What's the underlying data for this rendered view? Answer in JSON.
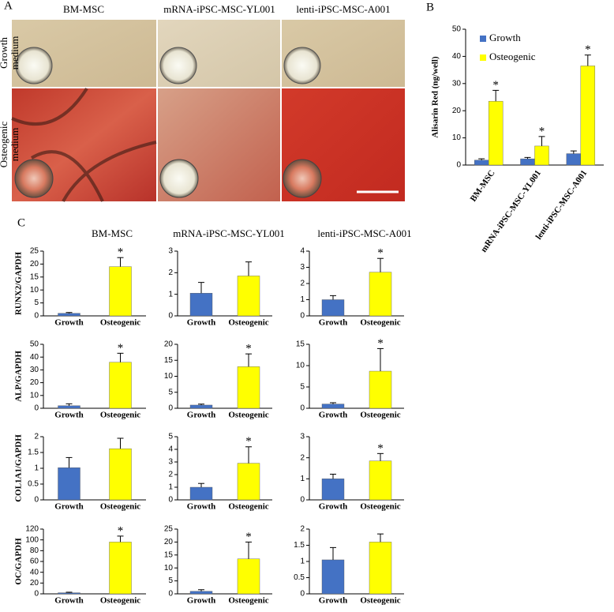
{
  "panel_a": {
    "label": "A",
    "column_titles": [
      "BM-MSC",
      "mRNA-iPSC-MSC-YL001",
      "lenti-iPSC-MSC-A001"
    ],
    "row_labels": [
      [
        "Growth",
        "medium"
      ],
      [
        "Osteogenic",
        "medium"
      ]
    ]
  },
  "panel_c": {
    "label": "C",
    "column_titles": [
      "BM-MSC",
      "mRNA-iPSC-MSC-YL001",
      "lenti-iPSC-MSC-A001"
    ]
  },
  "chart_data": [
    {
      "type": "bar",
      "label": "B",
      "ylabel": "Alisarin Red (ng/well)",
      "categories": [
        "BM-MSC",
        "mRNA-iPSC-MSC-YL001",
        "lenti-iPSC-MSC-A001"
      ],
      "ylim": [
        0,
        50
      ],
      "yticks": [
        0,
        10,
        20,
        30,
        40,
        50
      ],
      "legend": "top-left",
      "series": [
        {
          "name": "Growth",
          "color": "#4472c4",
          "values": [
            1.8,
            2.3,
            4.2
          ],
          "errors": [
            0.5,
            0.5,
            1
          ],
          "annotations": [
            null,
            null,
            null
          ]
        },
        {
          "name": "Osteogenic",
          "color": "#ffff00",
          "values": [
            23.5,
            7,
            36.5
          ],
          "errors": [
            4,
            3.5,
            4
          ],
          "annotations": [
            "*",
            "*",
            "*"
          ]
        }
      ]
    },
    {
      "type": "bar",
      "ylabel": "RUNX2/GAPDH",
      "categories": [
        "Growth",
        "Osteogenic"
      ],
      "colors": [
        "#4472c4",
        "#ffff00"
      ],
      "values": [
        1,
        19
      ],
      "errors": [
        0.3,
        3.5
      ],
      "annotations": [
        null,
        "*"
      ],
      "ylim": [
        0,
        25
      ],
      "yticks": [
        0,
        5,
        10,
        15,
        20,
        25
      ]
    },
    {
      "type": "bar",
      "categories": [
        "Growth",
        "Osteogenic"
      ],
      "colors": [
        "#4472c4",
        "#ffff00"
      ],
      "values": [
        1.05,
        1.85
      ],
      "errors": [
        0.5,
        0.65
      ],
      "ylim": [
        0,
        3
      ],
      "yticks": [
        0,
        1,
        2,
        3
      ]
    },
    {
      "type": "bar",
      "categories": [
        "Growth",
        "Osteogenic"
      ],
      "colors": [
        "#4472c4",
        "#ffff00"
      ],
      "values": [
        1,
        2.7
      ],
      "errors": [
        0.25,
        0.85
      ],
      "annotations": [
        null,
        "*"
      ],
      "ylim": [
        0,
        4
      ],
      "yticks": [
        0,
        1,
        2,
        3,
        4
      ]
    },
    {
      "type": "bar",
      "ylabel": "ALP/GAPDH",
      "categories": [
        "Growth",
        "Osteogenic"
      ],
      "colors": [
        "#4472c4",
        "#ffff00"
      ],
      "values": [
        2,
        36
      ],
      "errors": [
        1.5,
        7
      ],
      "annotations": [
        null,
        "*"
      ],
      "ylim": [
        0,
        50
      ],
      "yticks": [
        0,
        10,
        20,
        30,
        40,
        50
      ]
    },
    {
      "type": "bar",
      "categories": [
        "Growth",
        "Osteogenic"
      ],
      "colors": [
        "#4472c4",
        "#ffff00"
      ],
      "values": [
        1,
        13
      ],
      "errors": [
        0.3,
        4
      ],
      "annotations": [
        null,
        "*"
      ],
      "ylim": [
        0,
        20
      ],
      "yticks": [
        0,
        5,
        10,
        15,
        20
      ]
    },
    {
      "type": "bar",
      "categories": [
        "Growth",
        "Osteogenic"
      ],
      "colors": [
        "#4472c4",
        "#ffff00"
      ],
      "values": [
        1,
        8.7
      ],
      "errors": [
        0.3,
        5.3
      ],
      "annotations": [
        null,
        "*"
      ],
      "ylim": [
        0,
        15
      ],
      "yticks": [
        0,
        5,
        10,
        15
      ]
    },
    {
      "type": "bar",
      "ylabel": "COL1A1/GAPDH",
      "categories": [
        "Growth",
        "Osteogenic"
      ],
      "colors": [
        "#4472c4",
        "#ffff00"
      ],
      "values": [
        1.02,
        1.62
      ],
      "errors": [
        0.32,
        0.33
      ],
      "ylim": [
        0,
        2
      ],
      "yticks": [
        0,
        0.5,
        1,
        1.5,
        2
      ]
    },
    {
      "type": "bar",
      "categories": [
        "Growth",
        "Osteogenic"
      ],
      "colors": [
        "#4472c4",
        "#ffff00"
      ],
      "values": [
        1,
        2.9
      ],
      "errors": [
        0.3,
        1.3
      ],
      "annotations": [
        null,
        "*"
      ],
      "ylim": [
        0,
        5
      ],
      "yticks": [
        0,
        1,
        2,
        3,
        4,
        5
      ]
    },
    {
      "type": "bar",
      "categories": [
        "Growth",
        "Osteogenic"
      ],
      "colors": [
        "#4472c4",
        "#ffff00"
      ],
      "values": [
        1,
        1.85
      ],
      "errors": [
        0.22,
        0.35
      ],
      "annotations": [
        null,
        "*"
      ],
      "ylim": [
        0,
        3
      ],
      "yticks": [
        0,
        1,
        2,
        3
      ]
    },
    {
      "type": "bar",
      "ylabel": "OC/GAPDH",
      "categories": [
        "Growth",
        "Osteogenic"
      ],
      "colors": [
        "#4472c4",
        "#ffff00"
      ],
      "values": [
        2,
        96
      ],
      "errors": [
        1,
        11
      ],
      "annotations": [
        null,
        "*"
      ],
      "ylim": [
        0,
        120
      ],
      "yticks": [
        0,
        20,
        40,
        60,
        80,
        100,
        120
      ]
    },
    {
      "type": "bar",
      "categories": [
        "Growth",
        "Osteogenic"
      ],
      "colors": [
        "#4472c4",
        "#ffff00"
      ],
      "values": [
        1,
        13.5
      ],
      "errors": [
        0.6,
        6.5
      ],
      "annotations": [
        null,
        "*"
      ],
      "ylim": [
        0,
        25
      ],
      "yticks": [
        0,
        5,
        10,
        15,
        20,
        25
      ]
    },
    {
      "type": "bar",
      "categories": [
        "Growth",
        "Osteogenic"
      ],
      "colors": [
        "#4472c4",
        "#ffff00"
      ],
      "values": [
        1.05,
        1.6
      ],
      "errors": [
        0.38,
        0.25
      ],
      "ylim": [
        0,
        2
      ],
      "yticks": [
        0,
        0.5,
        1,
        1.5,
        2
      ]
    }
  ]
}
